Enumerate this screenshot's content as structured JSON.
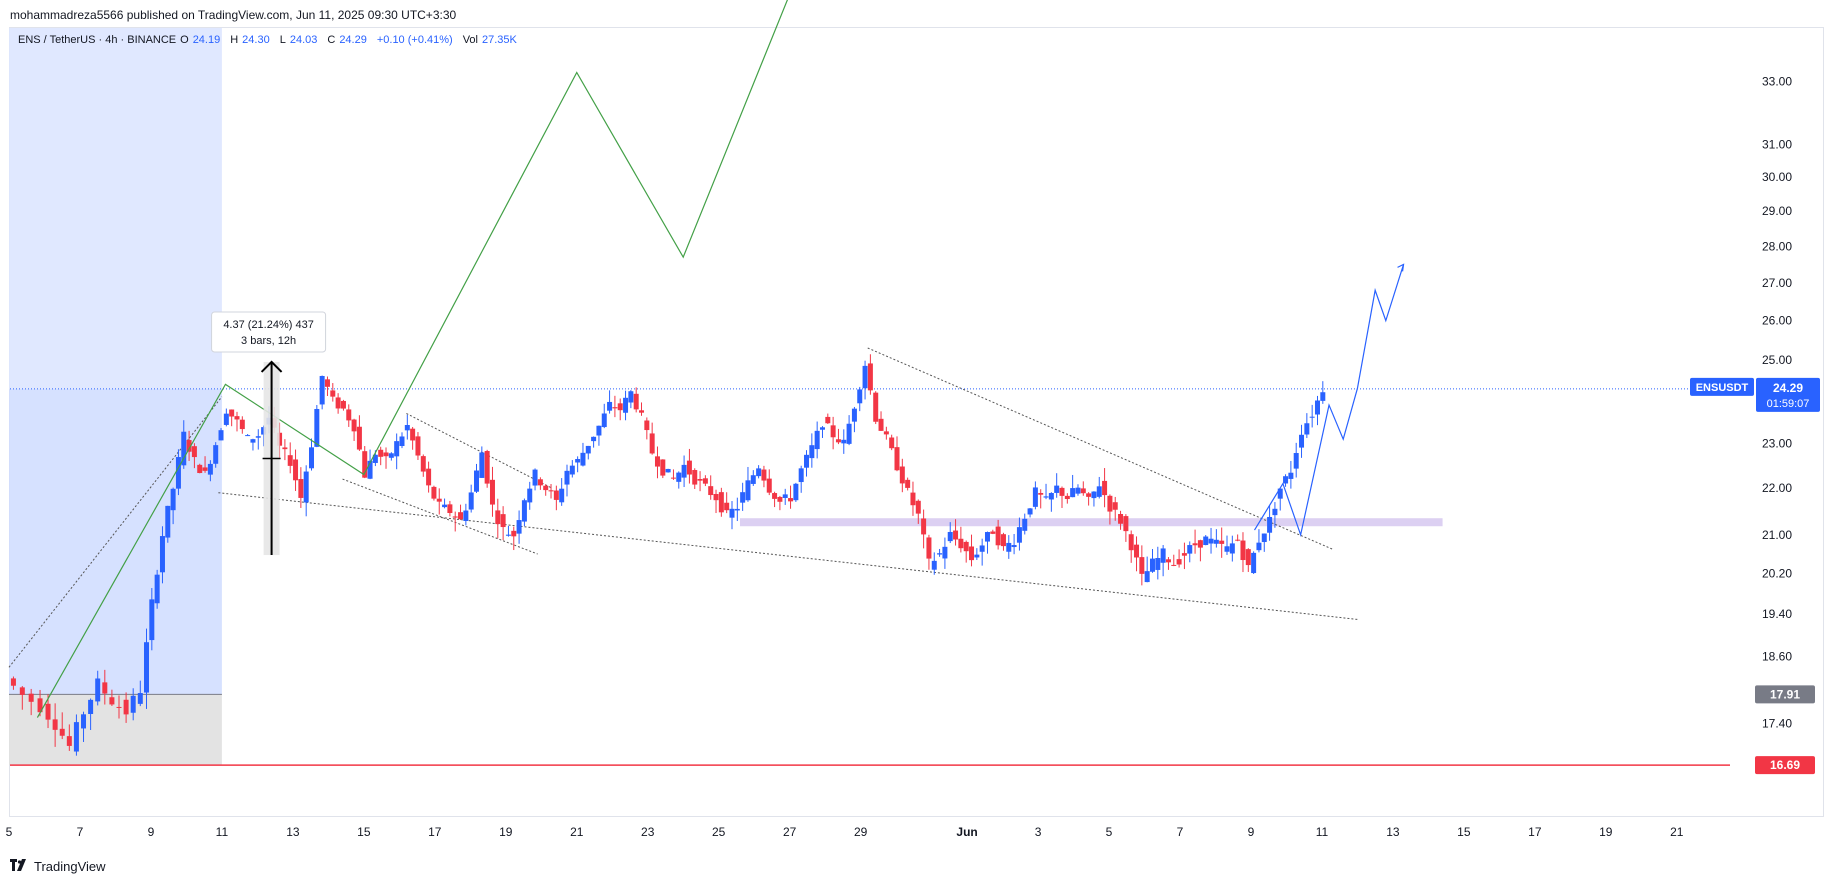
{
  "header": {
    "publisher": "mohammadreza5566 published on TradingView.com, Jun 11, 2025 09:30 UTC+3:30"
  },
  "legend": {
    "symbol": "ENS / TetherUS · 4h · BINANCE",
    "o_label": "O",
    "o_value": "24.19",
    "h_label": "H",
    "h_value": "24.30",
    "l_label": "L",
    "l_value": "24.03",
    "c_label": "C",
    "c_value": "24.29",
    "change": "+0.10 (+0.41%)",
    "vol_label": "Vol",
    "vol_value": "27.35K"
  },
  "footer": {
    "logo": "𝟭𝟳",
    "brand": "TradingView"
  },
  "chart_data": {
    "type": "candlestick",
    "symbol": "ENSUSDT",
    "timeframe": "4h",
    "y_scale": "log",
    "ylim": [
      16.2,
      34.5
    ],
    "y_ticks": [
      "33.00",
      "31.00",
      "30.00",
      "29.00",
      "28.00",
      "27.00",
      "26.00",
      "25.00",
      "23.00",
      "22.00",
      "21.00",
      "20.20",
      "19.40",
      "18.60",
      "17.40"
    ],
    "y_tick_values": [
      33,
      31,
      30,
      29,
      28,
      27,
      26,
      25,
      23,
      22,
      21,
      20.2,
      19.4,
      18.6,
      17.4
    ],
    "x_ticks": [
      "5",
      "7",
      "9",
      "11",
      "13",
      "15",
      "17",
      "19",
      "21",
      "23",
      "25",
      "27",
      "29",
      "Jun",
      "3",
      "5",
      "7",
      "9",
      "11",
      "13",
      "15",
      "17",
      "19",
      "21"
    ],
    "x_tick_days": [
      5,
      7,
      9,
      11,
      13,
      15,
      17,
      19,
      21,
      23,
      25,
      27,
      29,
      32,
      34,
      36,
      38,
      40,
      42,
      44,
      46,
      48,
      50,
      52
    ],
    "x_day_range": [
      5,
      53.5
    ],
    "last_price_badge": {
      "symbol": "ENSUSDT",
      "price": "24.29",
      "countdown": "01:59:07",
      "value": 24.29,
      "color": "#2962ff"
    },
    "price_labels": [
      {
        "text": "17.91",
        "value": 17.91,
        "color": "#787b86"
      },
      {
        "text": "16.69",
        "value": 16.69,
        "color": "#f23645"
      }
    ],
    "measure_tool": {
      "text_line1": "4.37 (21.24%) 437",
      "text_line2": "3 bars, 12h",
      "from": 20.58,
      "to": 24.95,
      "day": 12.4
    },
    "candles_anchor": [
      [
        5.0,
        18.2
      ],
      [
        5.5,
        17.9
      ],
      [
        6.0,
        17.7
      ],
      [
        6.4,
        17.4
      ],
      [
        6.8,
        17.0
      ],
      [
        7.2,
        17.6
      ],
      [
        7.6,
        18.1
      ],
      [
        8.0,
        17.8
      ],
      [
        8.4,
        17.6
      ],
      [
        8.8,
        18.0
      ],
      [
        9.1,
        19.6
      ],
      [
        9.4,
        21.0
      ],
      [
        9.7,
        22.0
      ],
      [
        10.0,
        23.2
      ],
      [
        10.3,
        22.6
      ],
      [
        10.6,
        22.3
      ],
      [
        10.9,
        23.0
      ],
      [
        11.2,
        23.8
      ],
      [
        11.5,
        23.5
      ],
      [
        11.8,
        23.1
      ],
      [
        12.1,
        23.2
      ],
      [
        12.4,
        23.6
      ],
      [
        12.7,
        22.9
      ],
      [
        13.0,
        22.6
      ],
      [
        13.3,
        21.8
      ],
      [
        13.6,
        23.0
      ],
      [
        13.9,
        24.6
      ],
      [
        14.2,
        24.0
      ],
      [
        14.5,
        23.8
      ],
      [
        14.8,
        23.4
      ],
      [
        15.1,
        22.3
      ],
      [
        15.4,
        22.8
      ],
      [
        15.7,
        22.6
      ],
      [
        16.0,
        23.0
      ],
      [
        16.3,
        23.4
      ],
      [
        16.6,
        22.7
      ],
      [
        16.9,
        22.0
      ],
      [
        17.2,
        21.6
      ],
      [
        17.5,
        21.5
      ],
      [
        17.8,
        21.3
      ],
      [
        18.1,
        21.9
      ],
      [
        18.4,
        22.8
      ],
      [
        18.7,
        21.6
      ],
      [
        19.0,
        21.1
      ],
      [
        19.3,
        21.0
      ],
      [
        19.6,
        21.8
      ],
      [
        19.9,
        22.3
      ],
      [
        20.2,
        22.0
      ],
      [
        20.5,
        21.7
      ],
      [
        20.8,
        22.4
      ],
      [
        21.1,
        22.6
      ],
      [
        21.4,
        23.0
      ],
      [
        21.7,
        23.4
      ],
      [
        22.0,
        23.9
      ],
      [
        22.3,
        23.8
      ],
      [
        22.6,
        24.2
      ],
      [
        22.9,
        23.6
      ],
      [
        23.2,
        22.8
      ],
      [
        23.5,
        22.4
      ],
      [
        23.8,
        22.2
      ],
      [
        24.1,
        22.5
      ],
      [
        24.4,
        22.2
      ],
      [
        24.7,
        22.0
      ],
      [
        25.0,
        21.8
      ],
      [
        25.3,
        21.4
      ],
      [
        25.6,
        21.6
      ],
      [
        25.9,
        22.1
      ],
      [
        26.2,
        22.5
      ],
      [
        26.5,
        22.0
      ],
      [
        26.8,
        21.7
      ],
      [
        27.1,
        21.8
      ],
      [
        27.4,
        22.4
      ],
      [
        27.7,
        22.9
      ],
      [
        28.0,
        23.5
      ],
      [
        28.3,
        23.2
      ],
      [
        28.6,
        23.0
      ],
      [
        28.9,
        23.9
      ],
      [
        29.2,
        24.9
      ],
      [
        29.5,
        23.6
      ],
      [
        29.8,
        23.1
      ],
      [
        30.1,
        22.5
      ],
      [
        30.4,
        21.9
      ],
      [
        30.7,
        21.4
      ],
      [
        31.0,
        20.4
      ],
      [
        31.3,
        20.6
      ],
      [
        31.6,
        21.0
      ],
      [
        31.9,
        20.8
      ],
      [
        32.2,
        20.5
      ],
      [
        32.5,
        20.8
      ],
      [
        32.8,
        21.1
      ],
      [
        33.1,
        20.7
      ],
      [
        33.4,
        20.9
      ],
      [
        33.7,
        21.4
      ],
      [
        34.0,
        21.9
      ],
      [
        34.3,
        21.7
      ],
      [
        34.6,
        22.0
      ],
      [
        34.9,
        21.8
      ],
      [
        35.2,
        22.0
      ],
      [
        35.5,
        21.7
      ],
      [
        35.8,
        22.1
      ],
      [
        36.1,
        21.6
      ],
      [
        36.4,
        21.3
      ],
      [
        36.7,
        20.8
      ],
      [
        37.0,
        20.1
      ],
      [
        37.3,
        20.4
      ],
      [
        37.6,
        20.6
      ],
      [
        37.9,
        20.4
      ],
      [
        38.2,
        20.6
      ],
      [
        38.5,
        20.8
      ],
      [
        38.8,
        20.9
      ],
      [
        39.1,
        20.8
      ],
      [
        39.4,
        20.7
      ],
      [
        39.7,
        20.9
      ],
      [
        40.0,
        20.3
      ],
      [
        40.3,
        20.9
      ],
      [
        40.6,
        21.3
      ],
      [
        40.9,
        22.0
      ],
      [
        41.2,
        22.4
      ],
      [
        41.5,
        23.3
      ],
      [
        41.8,
        23.7
      ],
      [
        42.1,
        24.3
      ]
    ],
    "horizontal_levels": [
      {
        "value": 24.29,
        "style": "dotted",
        "color": "#2962ff"
      },
      {
        "value": 16.69,
        "style": "solid",
        "color": "#f23645"
      }
    ],
    "support_zone": {
      "from_day": 25.6,
      "to_day": 45.4,
      "low": 21.18,
      "high": 21.35,
      "color": "#dcd0f2"
    },
    "long_position": {
      "from_day": 5.0,
      "to_day": 11.0,
      "entry": 17.91,
      "target": 24.29,
      "stop": 16.69
    },
    "green_projection": [
      [
        5.8,
        17.5
      ],
      [
        11.1,
        24.4
      ],
      [
        15.0,
        22.3
      ],
      [
        21.0,
        33.3
      ],
      [
        24.0,
        27.7
      ],
      [
        27.0,
        36.0
      ]
    ],
    "blue_projection": [
      [
        40.1,
        21.1
      ],
      [
        40.9,
        22.1
      ],
      [
        41.4,
        21.0
      ],
      [
        42.2,
        23.9
      ],
      [
        42.6,
        23.1
      ],
      [
        43.0,
        24.3
      ],
      [
        43.5,
        26.8
      ],
      [
        43.8,
        26.0
      ],
      [
        44.3,
        27.5
      ]
    ],
    "trendlines": [
      {
        "from": [
          10.9,
          21.9
        ],
        "to": [
          43.0,
          19.3
        ]
      },
      {
        "from": [
          16.2,
          23.7
        ],
        "to": [
          20.3,
          22.0
        ]
      },
      {
        "from": [
          29.2,
          25.3
        ],
        "to": [
          42.3,
          20.7
        ]
      },
      {
        "from": [
          14.4,
          22.2
        ],
        "to": [
          19.9,
          20.6
        ]
      },
      {
        "from": [
          5.0,
          18.4
        ],
        "to": [
          11.0,
          24.1
        ]
      }
    ],
    "colors": {
      "up": "#2962ff",
      "down": "#f23645",
      "green_line": "#43a047",
      "blue_line": "#2962ff",
      "long_target_fill": "#cfdcff",
      "long_stop_fill": "#e0e0e0"
    }
  }
}
